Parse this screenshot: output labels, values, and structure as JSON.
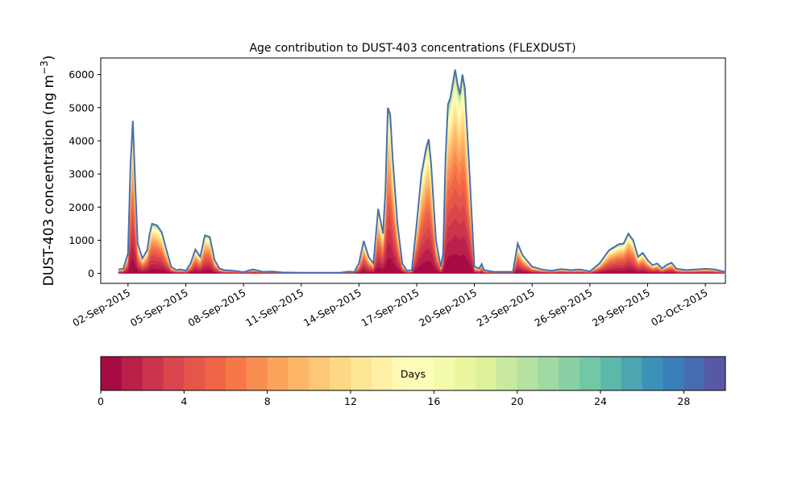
{
  "chart_data": {
    "type": "area",
    "title": "Age contribution to DUST-403 concentrations (FLEXDUST)",
    "ylabel": "DUST-403 concentration (ng m",
    "ylabel_superscript": "−3",
    "ylabel_close": ")",
    "xlabel": "",
    "ylim": [
      -300,
      6500
    ],
    "yticks": [
      0,
      1000,
      2000,
      3000,
      4000,
      5000,
      6000
    ],
    "xlim": [
      "2015-08-31T14:00",
      "2015-10-03T01:00"
    ],
    "xticks": [
      "02-Sep-2015",
      "05-Sep-2015",
      "08-Sep-2015",
      "11-Sep-2015",
      "14-Sep-2015",
      "17-Sep-2015",
      "20-Sep-2015",
      "23-Sep-2015",
      "26-Sep-2015",
      "29-Sep-2015",
      "02-Oct-2015"
    ],
    "series_note": "stacked by age in days 0-30, colored by age",
    "total_concentration": [
      [
        "2015-09-01T12:00",
        120
      ],
      [
        "2015-09-01T18:00",
        140
      ],
      [
        "2015-09-02T00:00",
        600
      ],
      [
        "2015-09-02T03:00",
        3200
      ],
      [
        "2015-09-02T06:00",
        4600
      ],
      [
        "2015-09-02T09:00",
        2700
      ],
      [
        "2015-09-02T12:00",
        900
      ],
      [
        "2015-09-02T18:00",
        450
      ],
      [
        "2015-09-03T00:00",
        700
      ],
      [
        "2015-09-03T03:00",
        1200
      ],
      [
        "2015-09-03T06:00",
        1500
      ],
      [
        "2015-09-03T12:00",
        1450
      ],
      [
        "2015-09-03T18:00",
        1250
      ],
      [
        "2015-09-04T00:00",
        700
      ],
      [
        "2015-09-04T06:00",
        200
      ],
      [
        "2015-09-04T12:00",
        100
      ],
      [
        "2015-09-04T18:00",
        120
      ],
      [
        "2015-09-05T00:00",
        80
      ],
      [
        "2015-09-05T06:00",
        300
      ],
      [
        "2015-09-05T12:00",
        720
      ],
      [
        "2015-09-05T18:00",
        500
      ],
      [
        "2015-09-06T00:00",
        1150
      ],
      [
        "2015-09-06T06:00",
        1100
      ],
      [
        "2015-09-06T12:00",
        400
      ],
      [
        "2015-09-06T18:00",
        150
      ],
      [
        "2015-09-07T00:00",
        100
      ],
      [
        "2015-09-07T12:00",
        80
      ],
      [
        "2015-09-08T00:00",
        40
      ],
      [
        "2015-09-08T12:00",
        120
      ],
      [
        "2015-09-09T00:00",
        50
      ],
      [
        "2015-09-09T12:00",
        60
      ],
      [
        "2015-09-10T00:00",
        30
      ],
      [
        "2015-09-11T00:00",
        20
      ],
      [
        "2015-09-12T00:00",
        20
      ],
      [
        "2015-09-13T00:00",
        20
      ],
      [
        "2015-09-13T12:00",
        60
      ],
      [
        "2015-09-13T18:00",
        40
      ],
      [
        "2015-09-14T00:00",
        300
      ],
      [
        "2015-09-14T06:00",
        980
      ],
      [
        "2015-09-14T12:00",
        500
      ],
      [
        "2015-09-14T18:00",
        300
      ],
      [
        "2015-09-15T00:00",
        1950
      ],
      [
        "2015-09-15T06:00",
        1200
      ],
      [
        "2015-09-15T09:00",
        2500
      ],
      [
        "2015-09-15T12:00",
        5000
      ],
      [
        "2015-09-15T15:00",
        4800
      ],
      [
        "2015-09-15T18:00",
        3500
      ],
      [
        "2015-09-16T00:00",
        1500
      ],
      [
        "2015-09-16T06:00",
        300
      ],
      [
        "2015-09-16T12:00",
        80
      ],
      [
        "2015-09-16T18:00",
        100
      ],
      [
        "2015-09-17T00:00",
        1500
      ],
      [
        "2015-09-17T06:00",
        3000
      ],
      [
        "2015-09-17T12:00",
        3800
      ],
      [
        "2015-09-17T15:00",
        4050
      ],
      [
        "2015-09-17T18:00",
        3300
      ],
      [
        "2015-09-18T00:00",
        1000
      ],
      [
        "2015-09-18T06:00",
        200
      ],
      [
        "2015-09-18T09:00",
        600
      ],
      [
        "2015-09-18T12:00",
        3500
      ],
      [
        "2015-09-18T15:00",
        5100
      ],
      [
        "2015-09-18T18:00",
        5300
      ],
      [
        "2015-09-19T00:00",
        6150
      ],
      [
        "2015-09-19T03:00",
        5700
      ],
      [
        "2015-09-19T06:00",
        5400
      ],
      [
        "2015-09-19T09:00",
        6000
      ],
      [
        "2015-09-19T12:00",
        5600
      ],
      [
        "2015-09-19T18:00",
        3000
      ],
      [
        "2015-09-20T00:00",
        200
      ],
      [
        "2015-09-20T06:00",
        150
      ],
      [
        "2015-09-20T09:00",
        280
      ],
      [
        "2015-09-20T12:00",
        100
      ],
      [
        "2015-09-21T00:00",
        50
      ],
      [
        "2015-09-22T00:00",
        50
      ],
      [
        "2015-09-22T06:00",
        900
      ],
      [
        "2015-09-22T12:00",
        550
      ],
      [
        "2015-09-23T00:00",
        200
      ],
      [
        "2015-09-23T12:00",
        120
      ],
      [
        "2015-09-24T00:00",
        80
      ],
      [
        "2015-09-24T12:00",
        130
      ],
      [
        "2015-09-25T00:00",
        100
      ],
      [
        "2015-09-25T12:00",
        120
      ],
      [
        "2015-09-26T00:00",
        60
      ],
      [
        "2015-09-26T12:00",
        300
      ],
      [
        "2015-09-27T00:00",
        700
      ],
      [
        "2015-09-27T12:00",
        880
      ],
      [
        "2015-09-27T18:00",
        900
      ],
      [
        "2015-09-28T00:00",
        1200
      ],
      [
        "2015-09-28T06:00",
        1000
      ],
      [
        "2015-09-28T12:00",
        500
      ],
      [
        "2015-09-28T18:00",
        620
      ],
      [
        "2015-09-29T00:00",
        400
      ],
      [
        "2015-09-29T06:00",
        250
      ],
      [
        "2015-09-29T12:00",
        300
      ],
      [
        "2015-09-29T18:00",
        150
      ],
      [
        "2015-09-30T00:00",
        260
      ],
      [
        "2015-09-30T06:00",
        320
      ],
      [
        "2015-09-30T12:00",
        140
      ],
      [
        "2015-10-01T00:00",
        100
      ],
      [
        "2015-10-01T12:00",
        120
      ],
      [
        "2015-10-02T00:00",
        140
      ],
      [
        "2015-10-02T12:00",
        120
      ],
      [
        "2015-10-03T00:00",
        50
      ]
    ],
    "colorbar": {
      "label": "Days",
      "range": [
        0,
        30
      ],
      "ticks": [
        0,
        4,
        8,
        12,
        16,
        20,
        24,
        28
      ],
      "colormap": "Spectral",
      "bins": 30
    },
    "colors": [
      "#9e0142",
      "#d53e4f",
      "#f46d43",
      "#fdae61",
      "#fee08b",
      "#ffffbf",
      "#e6f598",
      "#abdda4",
      "#66c2a5",
      "#3288bd",
      "#5e4fa2"
    ]
  }
}
